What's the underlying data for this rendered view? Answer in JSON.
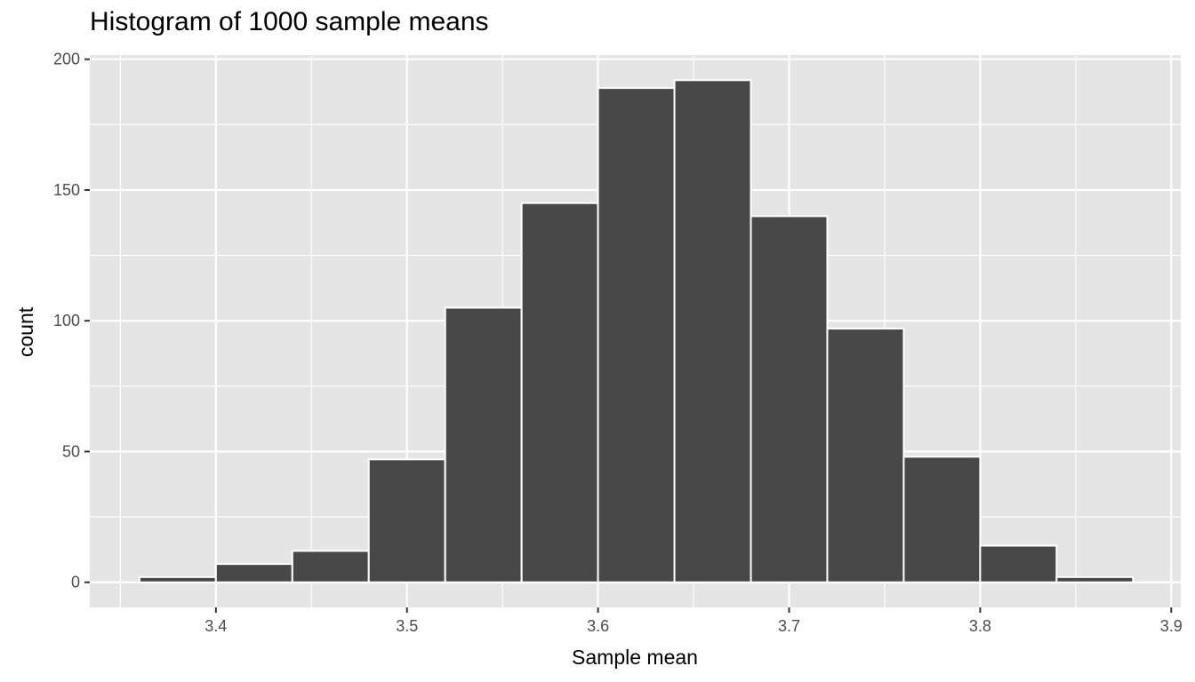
{
  "chart_data": {
    "type": "bar",
    "subtype": "histogram",
    "title": "Histogram of 1000 sample means",
    "xlabel": "Sample mean",
    "ylabel": "count",
    "bin_width": 0.04,
    "bins": [
      {
        "start": 3.36,
        "end": 3.4,
        "count": 2
      },
      {
        "start": 3.4,
        "end": 3.44,
        "count": 7
      },
      {
        "start": 3.44,
        "end": 3.48,
        "count": 12
      },
      {
        "start": 3.48,
        "end": 3.52,
        "count": 47
      },
      {
        "start": 3.52,
        "end": 3.56,
        "count": 105
      },
      {
        "start": 3.56,
        "end": 3.6,
        "count": 145
      },
      {
        "start": 3.6,
        "end": 3.64,
        "count": 189
      },
      {
        "start": 3.64,
        "end": 3.68,
        "count": 192
      },
      {
        "start": 3.68,
        "end": 3.72,
        "count": 140
      },
      {
        "start": 3.72,
        "end": 3.76,
        "count": 97
      },
      {
        "start": 3.76,
        "end": 3.8,
        "count": 48
      },
      {
        "start": 3.8,
        "end": 3.84,
        "count": 14
      },
      {
        "start": 3.84,
        "end": 3.88,
        "count": 2
      }
    ],
    "categories": [
      "3.36-3.40",
      "3.40-3.44",
      "3.44-3.48",
      "3.48-3.52",
      "3.52-3.56",
      "3.56-3.60",
      "3.60-3.64",
      "3.64-3.68",
      "3.68-3.72",
      "3.72-3.76",
      "3.76-3.80",
      "3.80-3.84",
      "3.84-3.88"
    ],
    "values": [
      2,
      7,
      12,
      47,
      105,
      145,
      189,
      192,
      140,
      97,
      48,
      14,
      2
    ],
    "x_ticks": [
      "3.4",
      "3.5",
      "3.6",
      "3.7",
      "3.8",
      "3.9"
    ],
    "y_ticks": [
      "0",
      "50",
      "100",
      "150",
      "200"
    ],
    "xlim": [
      3.334,
      3.905
    ],
    "ylim": [
      -9.6,
      201.6
    ],
    "grid": true,
    "legend": null,
    "colors": {
      "panel_background": "#e5e5e5",
      "grid": "#ffffff",
      "bar_fill": "#484848",
      "bar_outline": "#ffffff"
    }
  }
}
